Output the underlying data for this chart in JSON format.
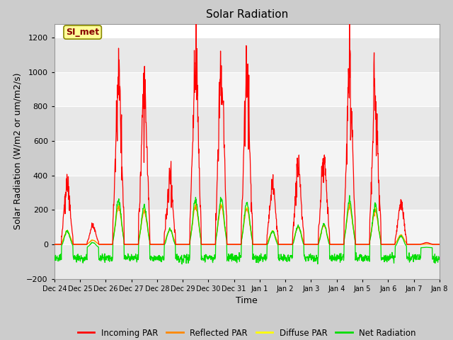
{
  "title": "Solar Radiation",
  "ylabel": "Solar Radiation (W/m2 or um/m2/s)",
  "xlabel": "Time",
  "ylim": [
    -200,
    1280
  ],
  "yticks": [
    -200,
    0,
    200,
    400,
    600,
    800,
    1000,
    1200
  ],
  "x_tick_labels": [
    "Dec 24",
    "Dec 25",
    "Dec 26",
    "Dec 27",
    "Dec 28",
    "Dec 29",
    "Dec 30",
    "Dec 31",
    "Jan 1",
    "Jan 2",
    "Jan 3",
    "Jan 4",
    "Jan 5",
    "Jan 6",
    "Jan 7",
    "Jan 8"
  ],
  "label_box_text": "SI_met",
  "label_box_color": "#ffff99",
  "label_box_border": "#888800",
  "label_box_text_color": "#880000",
  "colors": {
    "incoming": "#ff0000",
    "reflected": "#ff8800",
    "diffuse": "#ffff00",
    "net": "#00dd00"
  },
  "legend_labels": [
    "Incoming PAR",
    "Reflected PAR",
    "Diffuse PAR",
    "Net Radiation"
  ],
  "fig_bg": "#cccccc",
  "band_colors": [
    "#e8e8e8",
    "#f4f4f4"
  ],
  "title_fontsize": 11,
  "axis_fontsize": 9,
  "tick_fontsize": 8,
  "n_days": 15,
  "pts_per_day": 96,
  "incoming_peaks": [
    350,
    110,
    980,
    870,
    390,
    1005,
    1010,
    940,
    340,
    460,
    490,
    985,
    880,
    240,
    10
  ],
  "net_night_base": -80
}
